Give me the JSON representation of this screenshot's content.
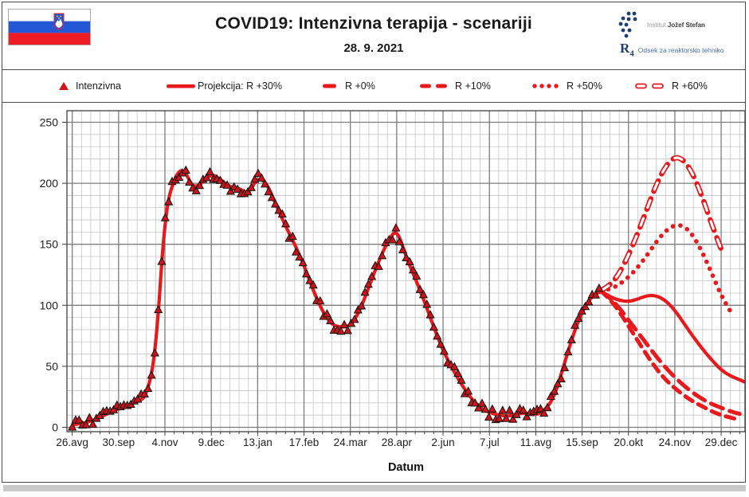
{
  "header": {
    "title": "COVID19: Intenzivna terapija - scenariji",
    "date": "28. 9. 2021",
    "org": {
      "institute_prefix": "Institut",
      "institute_name": "Jožef Stefan",
      "dept_logo": "R4",
      "dept_name": "Odsek za reaktorsko tehniko"
    }
  },
  "legend": [
    {
      "label": "Intenzivna",
      "marker": "triangle"
    },
    {
      "label": "Projekcija: R +30%",
      "marker": "solid"
    },
    {
      "label": "R +0%",
      "marker": "dash"
    },
    {
      "label": "R +10%",
      "marker": "longdash"
    },
    {
      "label": "R +50%",
      "marker": "dot"
    },
    {
      "label": "R +60%",
      "marker": "hollowdash"
    }
  ],
  "colors": {
    "line_red": "#e8191c",
    "marker_red": "#cf1318",
    "marker_edge": "#161616",
    "grid_minor": "#c6c6c6",
    "grid_major": "#7d7d7d",
    "axis": "#3f3f3f",
    "flag_blue": "#2457d5",
    "flag_red": "#ee1c25",
    "logo_navy": "#1c3e75",
    "dept_blue": "#4a6ea9"
  },
  "chart_data": {
    "type": "line",
    "title": "COVID19: Intenzivna terapija - scenariji",
    "xlabel": "Datum",
    "ylabel": "",
    "ylim": [
      0,
      250
    ],
    "grid": true,
    "y_major_ticks": [
      0,
      50,
      100,
      150,
      200,
      250
    ],
    "y_minor_step": 10,
    "x_tick_labels": [
      "26.avg",
      "30.sep",
      "4.nov",
      "9.dec",
      "13.jan",
      "17.feb",
      "24.mar",
      "28.apr",
      "2.jun",
      "7.jul",
      "11.avg",
      "15.sep",
      "20.okt",
      "24.nov",
      "29.dec"
    ],
    "x_tick_days": [
      0,
      35,
      70,
      105,
      140,
      175,
      210,
      245,
      280,
      315,
      350,
      385,
      420,
      455,
      490
    ],
    "x_minor_step_days": 7,
    "x_range_days": [
      -4,
      508
    ],
    "series": [
      {
        "name": "Intenzivna",
        "style": "markers",
        "x": [
          0,
          7,
          14,
          21,
          28,
          35,
          42,
          49,
          56,
          63,
          70,
          77,
          84,
          91,
          98,
          105,
          112,
          119,
          126,
          133,
          140,
          147,
          154,
          161,
          168,
          175,
          182,
          189,
          196,
          203,
          210,
          217,
          224,
          231,
          238,
          245,
          252,
          259,
          266,
          273,
          280,
          287,
          294,
          301,
          308,
          315,
          322,
          329,
          336,
          343,
          350,
          357,
          364,
          371,
          378,
          385,
          392,
          399
        ],
        "y": [
          2,
          3,
          5,
          8,
          12,
          15,
          18,
          21,
          25,
          60,
          175,
          205,
          213,
          196,
          200,
          208,
          203,
          197,
          196,
          191,
          205,
          200,
          182,
          165,
          150,
          133,
          112,
          95,
          84,
          82,
          83,
          95,
          115,
          135,
          152,
          160,
          140,
          122,
          103,
          82,
          63,
          48,
          35,
          24,
          16,
          12,
          10,
          9,
          11,
          12,
          10,
          14,
          25,
          50,
          75,
          95,
          107,
          112
        ]
      },
      {
        "name": "Projekcija: R +30%",
        "style": "solid",
        "x": [
          0,
          7,
          14,
          21,
          28,
          35,
          42,
          49,
          56,
          63,
          70,
          77,
          84,
          91,
          98,
          105,
          112,
          119,
          126,
          133,
          140,
          147,
          154,
          161,
          168,
          175,
          182,
          189,
          196,
          203,
          210,
          217,
          224,
          231,
          238,
          245,
          252,
          259,
          266,
          273,
          280,
          287,
          294,
          301,
          308,
          315,
          322,
          329,
          336,
          343,
          350,
          357,
          364,
          371,
          378,
          385,
          392,
          399,
          406,
          413,
          420,
          427,
          434,
          441,
          448,
          455,
          462,
          469,
          476,
          483,
          490,
          497,
          504,
          508
        ],
        "y": [
          2,
          3,
          5,
          8,
          12,
          15,
          18,
          21,
          25,
          60,
          175,
          205,
          213,
          196,
          200,
          208,
          203,
          197,
          196,
          191,
          205,
          200,
          182,
          165,
          150,
          133,
          112,
          95,
          84,
          82,
          83,
          95,
          115,
          135,
          152,
          163,
          140,
          122,
          103,
          82,
          63,
          48,
          35,
          24,
          16,
          12,
          10,
          9,
          11,
          12,
          10,
          14,
          25,
          50,
          75,
          95,
          107,
          112,
          107,
          104,
          103,
          105,
          108,
          108,
          104,
          96,
          85,
          74,
          64,
          55,
          47,
          42,
          39,
          37
        ]
      },
      {
        "name": "R +0%",
        "style": "dash",
        "x": [
          399,
          406,
          413,
          420,
          427,
          434,
          441,
          448,
          455,
          462,
          469,
          476,
          483,
          490,
          497,
          504
        ],
        "y": [
          112,
          105,
          95,
          83,
          71,
          59,
          48,
          39,
          32,
          26,
          21,
          17,
          13,
          10,
          8,
          6
        ]
      },
      {
        "name": "R +10%",
        "style": "longdash",
        "x": [
          399,
          406,
          413,
          420,
          427,
          434,
          441,
          448,
          455,
          462,
          469,
          476,
          483,
          490,
          497,
          504
        ],
        "y": [
          112,
          106,
          98,
          88,
          78,
          68,
          58,
          49,
          41,
          34,
          28,
          23,
          19,
          16,
          13,
          11
        ]
      },
      {
        "name": "R +50%",
        "style": "dot",
        "x": [
          399,
          406,
          413,
          420,
          427,
          434,
          441,
          448,
          455,
          462,
          469,
          476,
          483,
          490,
          497
        ],
        "y": [
          112,
          113,
          117,
          123,
          131,
          141,
          152,
          161,
          166,
          165,
          157,
          143,
          126,
          108,
          95
        ]
      },
      {
        "name": "R +60%",
        "style": "hollowdash",
        "x": [
          399,
          406,
          413,
          420,
          427,
          434,
          441,
          448,
          455,
          462,
          469,
          476,
          483,
          490
        ],
        "y": [
          112,
          116,
          126,
          141,
          159,
          179,
          199,
          214,
          222,
          219,
          207,
          188,
          166,
          146
        ]
      }
    ]
  }
}
